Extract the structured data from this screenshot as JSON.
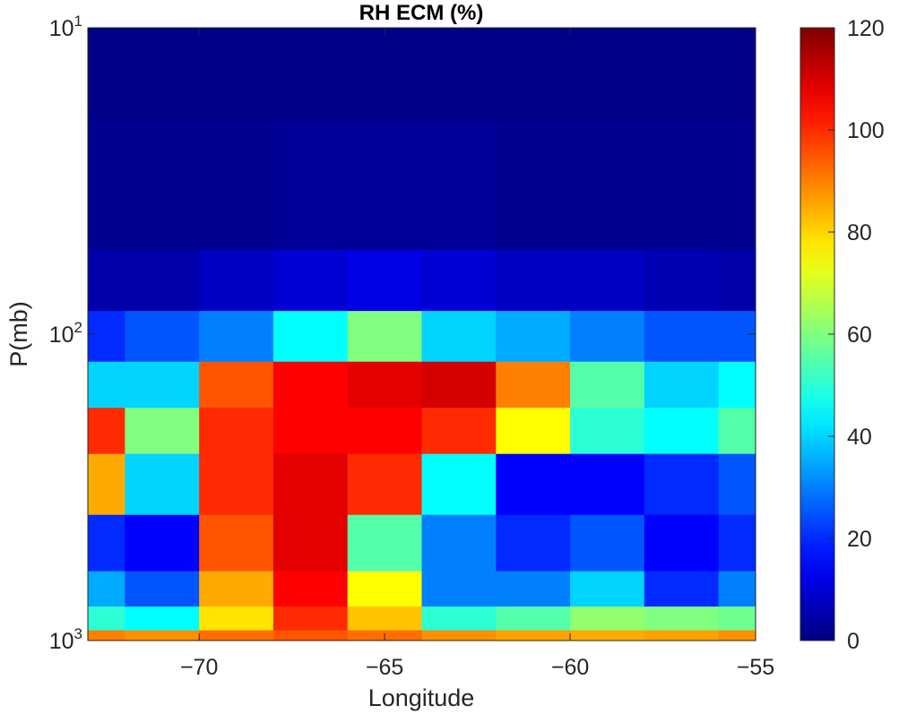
{
  "chart_data": {
    "type": "heatmap",
    "title": "RH ECM (%)",
    "xlabel": "Longitude",
    "ylabel": "P(mb)",
    "xlim": [
      -73,
      -55
    ],
    "ylim": [
      10,
      1000
    ],
    "y_scale": "log",
    "y_direction": "reversed",
    "x_ticks": [
      -70,
      -65,
      -60,
      -55
    ],
    "x_tick_labels": [
      "−70",
      "−65",
      "−60",
      "−55"
    ],
    "y_ticks": [
      {
        "value": 10,
        "base": "10",
        "exp": "1"
      },
      {
        "value": 100,
        "base": "10",
        "exp": "2"
      },
      {
        "value": 1000,
        "base": "10",
        "exp": "3"
      }
    ],
    "colorbar": {
      "colormap": "jet",
      "range": [
        0,
        120
      ],
      "ticks": [
        0,
        20,
        40,
        60,
        80,
        100,
        120
      ],
      "tick_labels": [
        "0",
        "20",
        "40",
        "60",
        "80",
        "100",
        "120"
      ]
    },
    "grid": false,
    "longitude": [
      -73,
      -71,
      -69,
      -67,
      -65,
      -63,
      -61,
      -59,
      -57,
      -55
    ],
    "pressure": [
      1000,
      850,
      700,
      500,
      300,
      200,
      150,
      100,
      70,
      40,
      10
    ],
    "rh_values": [
      [
        90,
        88,
        92,
        95,
        92,
        88,
        86,
        85,
        86,
        88
      ],
      [
        50,
        45,
        78,
        100,
        82,
        50,
        55,
        62,
        60,
        58
      ],
      [
        35,
        25,
        85,
        105,
        75,
        30,
        30,
        40,
        20,
        30
      ],
      [
        20,
        15,
        95,
        108,
        55,
        30,
        20,
        25,
        15,
        20
      ],
      [
        85,
        40,
        100,
        108,
        100,
        45,
        15,
        15,
        20,
        25
      ],
      [
        100,
        60,
        100,
        105,
        105,
        100,
        75,
        50,
        45,
        55
      ],
      [
        40,
        40,
        95,
        105,
        108,
        110,
        90,
        55,
        40,
        45
      ],
      [
        20,
        25,
        30,
        45,
        60,
        40,
        35,
        30,
        25,
        25
      ],
      [
        5,
        5,
        8,
        10,
        12,
        10,
        8,
        8,
        6,
        5
      ],
      [
        2,
        2,
        2,
        3,
        3,
        3,
        2,
        2,
        2,
        2
      ],
      [
        1,
        1,
        1,
        1,
        1,
        1,
        1,
        1,
        1,
        1
      ]
    ]
  }
}
